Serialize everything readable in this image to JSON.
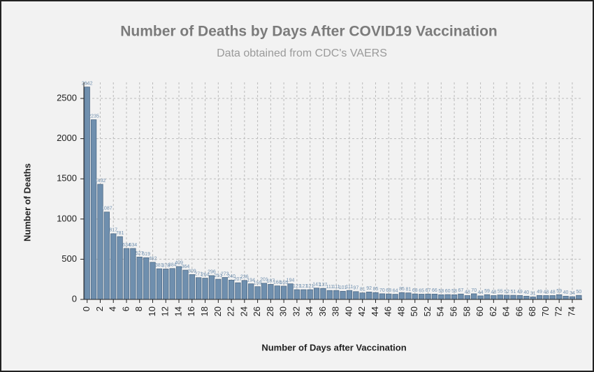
{
  "chart_data": {
    "type": "bar",
    "title": "Number of Deaths by Days After COVID19 Vaccination",
    "subtitle": "Data obtained from CDC's VAERS",
    "xlabel": "Number of Days after Vaccination",
    "ylabel": "Number of Deaths",
    "x": [
      0,
      1,
      2,
      3,
      4,
      5,
      6,
      7,
      8,
      9,
      10,
      11,
      12,
      13,
      14,
      15,
      16,
      17,
      18,
      19,
      20,
      21,
      22,
      23,
      24,
      25,
      26,
      27,
      28,
      29,
      30,
      31,
      32,
      33,
      34,
      35,
      36,
      37,
      38,
      39,
      40,
      41,
      42,
      43,
      44,
      45,
      46,
      47,
      48,
      49,
      50,
      51,
      52,
      53,
      54,
      55,
      56,
      57,
      58,
      59,
      60,
      61,
      62,
      63,
      64,
      65,
      66,
      67,
      68,
      69,
      70,
      71,
      72,
      73,
      74,
      75
    ],
    "values": [
      2642,
      2235,
      1432,
      1087,
      817,
      781,
      634,
      634,
      527,
      519,
      462,
      381,
      378,
      384,
      409,
      364,
      309,
      271,
      264,
      296,
      251,
      273,
      240,
      207,
      236,
      194,
      159,
      201,
      187,
      168,
      165,
      194,
      121,
      121,
      121,
      141,
      137,
      111,
      111,
      101,
      111,
      97,
      81,
      92,
      85,
      70,
      68,
      64,
      85,
      81,
      68,
      65,
      67,
      66,
      58,
      60,
      58,
      67,
      48,
      70,
      44,
      59,
      48,
      55,
      52,
      51,
      49,
      40,
      31,
      49,
      48,
      48,
      59,
      40,
      34,
      50
    ],
    "color": "#6f8fae",
    "xlim": [
      -0.5,
      75.5
    ],
    "xticks": [
      0,
      2,
      4,
      6,
      8,
      10,
      12,
      14,
      16,
      18,
      20,
      22,
      24,
      26,
      28,
      30,
      32,
      34,
      36,
      38,
      40,
      42,
      44,
      46,
      48,
      50,
      52,
      54,
      56,
      58,
      60,
      62,
      64,
      66,
      68,
      70,
      72,
      74
    ],
    "ylim": [
      0,
      2700
    ],
    "yticks": [
      0,
      500,
      1000,
      1500,
      2000,
      2500
    ],
    "grid": true
  }
}
